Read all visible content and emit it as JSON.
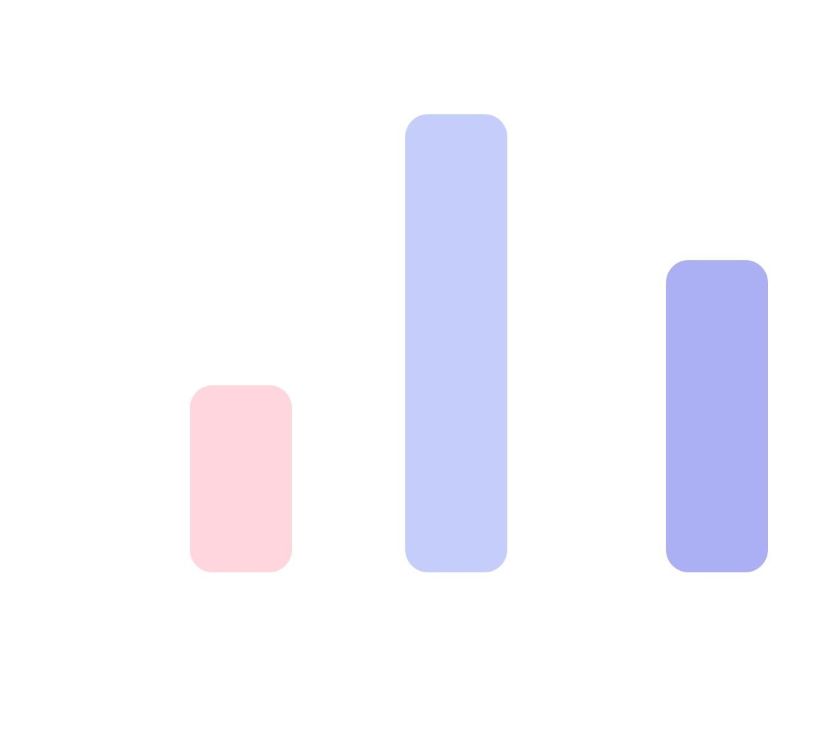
{
  "chart_data": {
    "type": "bar",
    "categories": [
      "",
      "",
      ""
    ],
    "values": [
      1.0,
      2.45,
      1.67
    ],
    "title": "",
    "xlabel": "",
    "ylabel": "",
    "grid": false,
    "legend": "none",
    "bar_colors": [
      "#ffd6de",
      "#c5cefb",
      "#aab0f3"
    ]
  }
}
